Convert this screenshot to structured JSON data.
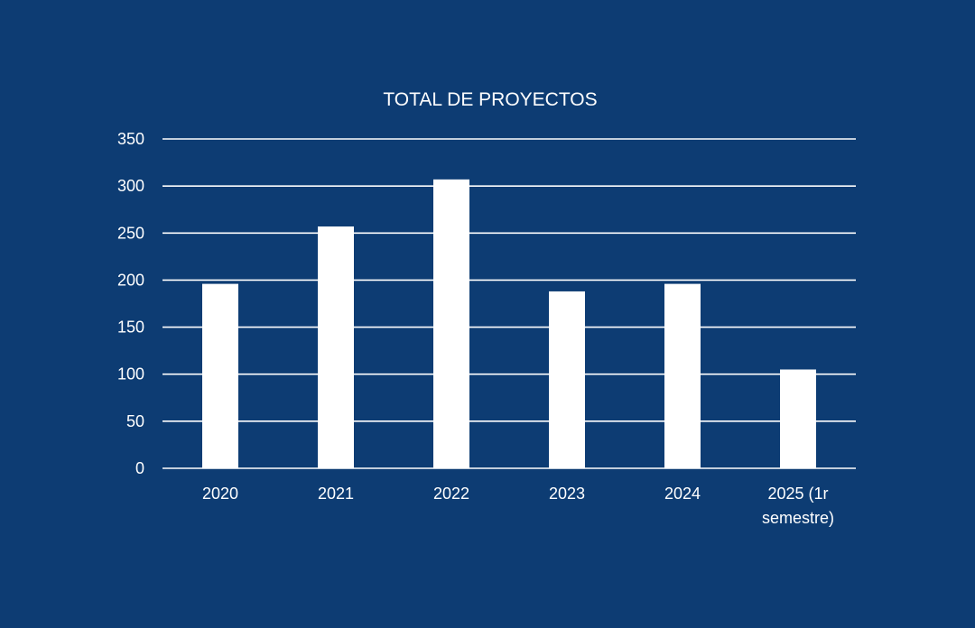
{
  "chart_data": {
    "type": "bar",
    "title": "TOTAL DE PROYECTOS",
    "xlabel": "",
    "ylabel": "",
    "categories": [
      "2020",
      "2021",
      "2022",
      "2023",
      "2024",
      "2025 (1r semestre)"
    ],
    "category_lines": [
      [
        "2020"
      ],
      [
        "2021"
      ],
      [
        "2022"
      ],
      [
        "2023"
      ],
      [
        "2024"
      ],
      [
        "2025 (1r",
        "semestre)"
      ]
    ],
    "values": [
      196,
      257,
      307,
      188,
      196,
      105
    ],
    "ylim": [
      0,
      350
    ],
    "yticks": [
      0,
      50,
      100,
      150,
      200,
      250,
      300,
      350
    ],
    "grid": true,
    "legend": "none",
    "colors": {
      "background": "#0d3c73",
      "bar": "#ffffff",
      "grid": "#ffffff",
      "text": "#ffffff"
    }
  }
}
